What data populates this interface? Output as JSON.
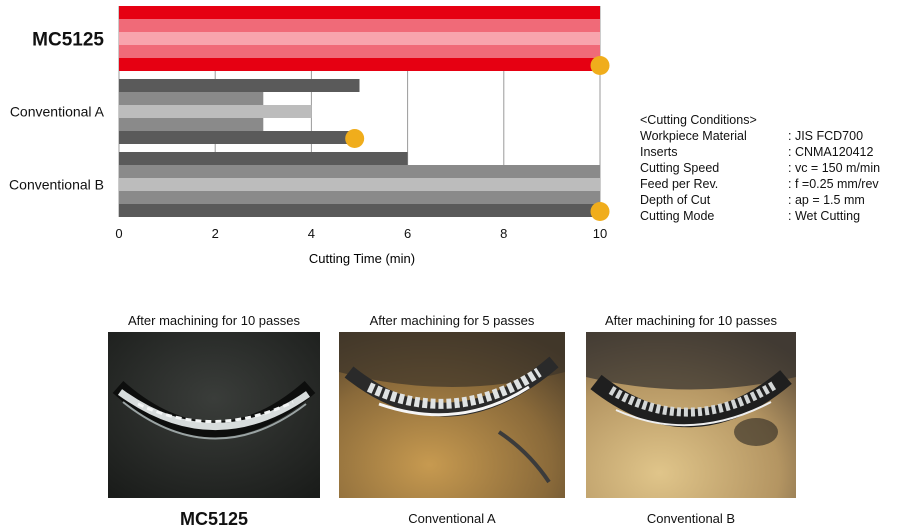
{
  "chart_data": {
    "type": "bar",
    "orientation": "horizontal",
    "xlabel": "Cutting Time (min)",
    "xlim": [
      0,
      10
    ],
    "xticks": [
      0,
      2,
      4,
      6,
      8,
      10
    ],
    "grid": true,
    "groups": [
      {
        "name": "MC5125",
        "bold": true,
        "values": [
          10,
          10,
          10,
          10,
          10
        ],
        "colors": [
          "#e60012",
          "#f06a78",
          "#f8a4ad",
          "#f06a78",
          "#e60012"
        ],
        "marker": 10
      },
      {
        "name": "Conventional A",
        "bold": false,
        "values": [
          5,
          3,
          4,
          3,
          4.8
        ],
        "colors": [
          "#5a5a5a",
          "#8a8a8a",
          "#bcbcbc",
          "#8a8a8a",
          "#5a5a5a"
        ],
        "marker": 4.9
      },
      {
        "name": "Conventional B",
        "bold": false,
        "values": [
          6,
          10,
          10,
          10,
          10
        ],
        "colors": [
          "#5a5a5a",
          "#8a8a8a",
          "#bcbcbc",
          "#8a8a8a",
          "#5a5a5a"
        ],
        "marker": 10
      }
    ],
    "marker_color": "#f0ad1c"
  },
  "conditions": {
    "title": "<Cutting Conditions>",
    "rows": [
      {
        "label": "Workpiece Material",
        "value": ": JIS FCD700"
      },
      {
        "label": "Inserts",
        "value": ": CNMA120412"
      },
      {
        "label": "Cutting Speed",
        "value": ": vc = 150 m/min"
      },
      {
        "label": "Feed per Rev.",
        "value": ": f =0.25 mm/rev"
      },
      {
        "label": "Depth of Cut",
        "value": ": ap = 1.5 mm"
      },
      {
        "label": "Cutting Mode",
        "value": ": Wet Cutting"
      }
    ]
  },
  "photos": [
    {
      "caption": "After machining for 10 passes",
      "name": "MC5125"
    },
    {
      "caption": "After machining for 5 passes",
      "name": "Conventional A"
    },
    {
      "caption": "After machining for 10 passes",
      "name": "Conventional B"
    }
  ]
}
